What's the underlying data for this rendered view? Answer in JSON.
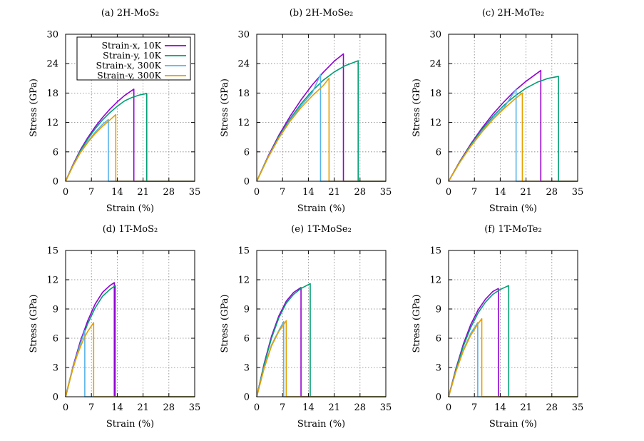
{
  "figure": {
    "colors": {
      "strain_x_10K": "#9400D3",
      "strain_y_10K": "#009E73",
      "strain_x_300K": "#56B4E9",
      "strain_y_300K": "#E69F00"
    }
  },
  "chart_data": [
    {
      "type": "line",
      "title": "(a) 2H-MoS₂",
      "xlabel": "Strain (%)",
      "ylabel": "Stress (GPa)",
      "xlim": [
        0,
        35
      ],
      "ylim": [
        0,
        30
      ],
      "xticks": [
        0,
        7,
        14,
        21,
        28,
        35
      ],
      "yticks": [
        0,
        6,
        12,
        18,
        24,
        30
      ],
      "grid": true,
      "legend_position": "top-right",
      "series": [
        {
          "name": "Strain-x, 10K",
          "key": "strain_x_10K",
          "x": [
            0,
            2,
            4,
            6,
            8,
            10,
            12,
            14,
            16,
            18.5,
            18.5,
            35
          ],
          "y": [
            0,
            3.4,
            6.4,
            8.9,
            11.1,
            13.0,
            14.7,
            16.2,
            17.5,
            18.8,
            0,
            0
          ]
        },
        {
          "name": "Strain-y, 10K",
          "key": "strain_y_10K",
          "x": [
            0,
            2,
            4,
            6,
            8,
            10,
            12,
            14,
            16,
            18,
            20,
            22,
            22,
            35
          ],
          "y": [
            0,
            3.3,
            6.2,
            8.6,
            10.7,
            12.5,
            14.0,
            15.3,
            16.4,
            17.1,
            17.6,
            17.9,
            0,
            0
          ]
        },
        {
          "name": "Strain-x, 300K",
          "key": "strain_x_300K",
          "x": [
            0,
            2,
            4,
            6,
            8,
            10,
            11.6,
            11.6,
            35
          ],
          "y": [
            0,
            3.2,
            5.9,
            8.1,
            10.0,
            11.6,
            12.6,
            0,
            0
          ]
        },
        {
          "name": "Strain-y, 300K",
          "key": "strain_y_300K",
          "x": [
            0,
            2,
            4,
            6,
            8,
            10,
            12,
            13.6,
            13.6,
            35
          ],
          "y": [
            0,
            3.1,
            5.8,
            7.9,
            9.7,
            11.2,
            12.5,
            13.6,
            0,
            0
          ]
        }
      ]
    },
    {
      "type": "line",
      "title": "(b) 2H-MoSe₂",
      "xlabel": "Strain (%)",
      "ylabel": "Stress (GPa)",
      "xlim": [
        0,
        35
      ],
      "ylim": [
        0,
        30
      ],
      "xticks": [
        0,
        7,
        14,
        21,
        28,
        35
      ],
      "yticks": [
        0,
        6,
        12,
        18,
        24,
        30
      ],
      "grid": true,
      "series": [
        {
          "name": "Strain-x, 10K",
          "key": "strain_x_10K",
          "x": [
            0,
            3,
            6,
            9,
            12,
            15,
            18,
            21,
            23.5,
            23.5,
            35
          ],
          "y": [
            0,
            5.0,
            9.4,
            13.2,
            16.6,
            19.6,
            22.2,
            24.5,
            26.0,
            0,
            0
          ]
        },
        {
          "name": "Strain-y, 10K",
          "key": "strain_y_10K",
          "x": [
            0,
            3,
            6,
            9,
            12,
            15,
            18,
            21,
            24,
            27.5,
            27.5,
            35
          ],
          "y": [
            0,
            4.9,
            9.1,
            12.7,
            15.8,
            18.4,
            20.6,
            22.3,
            23.6,
            24.6,
            0,
            0
          ]
        },
        {
          "name": "Strain-x, 300K",
          "key": "strain_x_300K",
          "x": [
            0,
            3,
            6,
            9,
            12,
            15,
            17.3,
            17.3,
            35
          ],
          "y": [
            0,
            4.8,
            8.9,
            12.4,
            15.4,
            18.0,
            21.8,
            0,
            0
          ]
        },
        {
          "name": "Strain-y, 300K",
          "key": "strain_y_300K",
          "x": [
            0,
            3,
            6,
            9,
            12,
            15,
            18,
            19.6,
            19.6,
            35
          ],
          "y": [
            0,
            4.7,
            8.8,
            12.2,
            15.0,
            17.4,
            19.5,
            21.0,
            0,
            0
          ]
        }
      ]
    },
    {
      "type": "line",
      "title": "(c) 2H-MoTe₂",
      "xlabel": "Strain (%)",
      "ylabel": "Stress (GPa)",
      "xlim": [
        0,
        35
      ],
      "ylim": [
        0,
        30
      ],
      "xticks": [
        0,
        7,
        14,
        21,
        28,
        35
      ],
      "yticks": [
        0,
        6,
        12,
        18,
        24,
        30
      ],
      "grid": true,
      "series": [
        {
          "name": "Strain-x, 10K",
          "key": "strain_x_10K",
          "x": [
            0,
            3,
            6,
            9,
            12,
            15,
            18,
            21,
            25,
            25,
            35
          ],
          "y": [
            0,
            4.0,
            7.6,
            10.8,
            13.7,
            16.2,
            18.5,
            20.4,
            22.6,
            0,
            0
          ]
        },
        {
          "name": "Strain-y, 10K",
          "key": "strain_y_10K",
          "x": [
            0,
            3,
            6,
            9,
            12,
            15,
            18,
            21,
            24,
            27,
            29.8,
            29.8,
            35
          ],
          "y": [
            0,
            3.9,
            7.4,
            10.5,
            13.2,
            15.5,
            17.4,
            19.0,
            20.2,
            21.0,
            21.4,
            0,
            0
          ]
        },
        {
          "name": "Strain-x, 300K",
          "key": "strain_x_300K",
          "x": [
            0,
            3,
            6,
            9,
            12,
            15,
            18.3,
            18.3,
            35
          ],
          "y": [
            0,
            3.8,
            7.2,
            10.2,
            12.8,
            15.0,
            18.8,
            0,
            0
          ]
        },
        {
          "name": "Strain-y, 300K",
          "key": "strain_y_300K",
          "x": [
            0,
            3,
            6,
            9,
            12,
            15,
            18,
            20,
            20,
            35
          ],
          "y": [
            0,
            3.8,
            7.1,
            10.0,
            12.6,
            14.8,
            16.8,
            18.0,
            0,
            0
          ]
        }
      ]
    },
    {
      "type": "line",
      "title": "(d) 1T-MoS₂",
      "xlabel": "Strain (%)",
      "ylabel": "Stress (GPa)",
      "xlim": [
        0,
        35
      ],
      "ylim": [
        0,
        15
      ],
      "xticks": [
        0,
        7,
        14,
        21,
        28,
        35
      ],
      "yticks": [
        0,
        3,
        6,
        9,
        12,
        15
      ],
      "grid": true,
      "series": [
        {
          "name": "Strain-x, 10K",
          "key": "strain_x_10K",
          "x": [
            0,
            2,
            4,
            6,
            8,
            10,
            12,
            13.2,
            13.2,
            35
          ],
          "y": [
            0,
            3.1,
            5.7,
            7.8,
            9.5,
            10.7,
            11.4,
            11.7,
            0,
            0
          ]
        },
        {
          "name": "Strain-y, 10K",
          "key": "strain_y_10K",
          "x": [
            0,
            2,
            4,
            6,
            8,
            10,
            12,
            13.5,
            13.5,
            35
          ],
          "y": [
            0,
            3.0,
            5.5,
            7.5,
            9.1,
            10.3,
            11.0,
            11.4,
            0,
            0
          ]
        },
        {
          "name": "Strain-x, 300K",
          "key": "strain_x_300K",
          "x": [
            0,
            1,
            2,
            3,
            4,
            5.2,
            5.2,
            35
          ],
          "y": [
            0,
            1.6,
            3.0,
            4.2,
            5.4,
            6.8,
            0,
            0
          ]
        },
        {
          "name": "Strain-y, 300K",
          "key": "strain_y_300K",
          "x": [
            0,
            1,
            2,
            3,
            4,
            5,
            6,
            7.6,
            7.6,
            35
          ],
          "y": [
            0,
            1.5,
            2.9,
            4.1,
            5.1,
            6.0,
            6.7,
            7.6,
            0,
            0
          ]
        }
      ]
    },
    {
      "type": "line",
      "title": "(e) 1T-MoSe₂",
      "xlabel": "Strain (%)",
      "ylabel": "Stress (GPa)",
      "xlim": [
        0,
        35
      ],
      "ylim": [
        0,
        15
      ],
      "xticks": [
        0,
        7,
        14,
        21,
        28,
        35
      ],
      "yticks": [
        0,
        3,
        6,
        9,
        12,
        15
      ],
      "grid": true,
      "series": [
        {
          "name": "Strain-x, 10K",
          "key": "strain_x_10K",
          "x": [
            0,
            2,
            4,
            6,
            8,
            10,
            12,
            12,
            35
          ],
          "y": [
            0,
            3.4,
            6.2,
            8.3,
            9.8,
            10.7,
            11.2,
            0,
            0
          ]
        },
        {
          "name": "Strain-y, 10K",
          "key": "strain_y_10K",
          "x": [
            0,
            2,
            4,
            6,
            8,
            10,
            12,
            14.5,
            14.5,
            35
          ],
          "y": [
            0,
            3.3,
            6.0,
            8.1,
            9.6,
            10.5,
            11.1,
            11.6,
            0,
            0
          ]
        },
        {
          "name": "Strain-x, 300K",
          "key": "strain_x_300K",
          "x": [
            0,
            2,
            4,
            6,
            7.3,
            7.3,
            35
          ],
          "y": [
            0,
            3.0,
            5.3,
            6.8,
            7.7,
            0,
            0
          ]
        },
        {
          "name": "Strain-y, 300K",
          "key": "strain_y_300K",
          "x": [
            0,
            2,
            4,
            6,
            8,
            8,
            35
          ],
          "y": [
            0,
            2.9,
            5.2,
            6.7,
            7.8,
            0,
            0
          ]
        }
      ]
    },
    {
      "type": "line",
      "title": "(f) 1T-MoTe₂",
      "xlabel": "Strain (%)",
      "ylabel": "Stress (GPa)",
      "xlim": [
        0,
        35
      ],
      "ylim": [
        0,
        15
      ],
      "xticks": [
        0,
        7,
        14,
        21,
        28,
        35
      ],
      "yticks": [
        0,
        3,
        6,
        9,
        12,
        15
      ],
      "grid": true,
      "series": [
        {
          "name": "Strain-x, 10K",
          "key": "strain_x_10K",
          "x": [
            0,
            2,
            4,
            6,
            8,
            10,
            12,
            13.5,
            13.5,
            35
          ],
          "y": [
            0,
            2.9,
            5.4,
            7.4,
            8.9,
            10.0,
            10.8,
            11.1,
            0,
            0
          ]
        },
        {
          "name": "Strain-y, 10K",
          "key": "strain_y_10K",
          "x": [
            0,
            2,
            4,
            6,
            8,
            10,
            12,
            14,
            16.3,
            16.3,
            35
          ],
          "y": [
            0,
            2.8,
            5.2,
            7.1,
            8.6,
            9.7,
            10.5,
            11.0,
            11.4,
            0,
            0
          ]
        },
        {
          "name": "Strain-x, 300K",
          "key": "strain_x_300K",
          "x": [
            0,
            2,
            4,
            6,
            7.9,
            7.9,
            35
          ],
          "y": [
            0,
            2.6,
            4.8,
            6.5,
            7.6,
            0,
            0
          ]
        },
        {
          "name": "Strain-y, 300K",
          "key": "strain_y_300K",
          "x": [
            0,
            2,
            4,
            6,
            8,
            9,
            9,
            35
          ],
          "y": [
            0,
            2.6,
            4.7,
            6.3,
            7.5,
            8.0,
            0,
            0
          ]
        }
      ]
    }
  ]
}
